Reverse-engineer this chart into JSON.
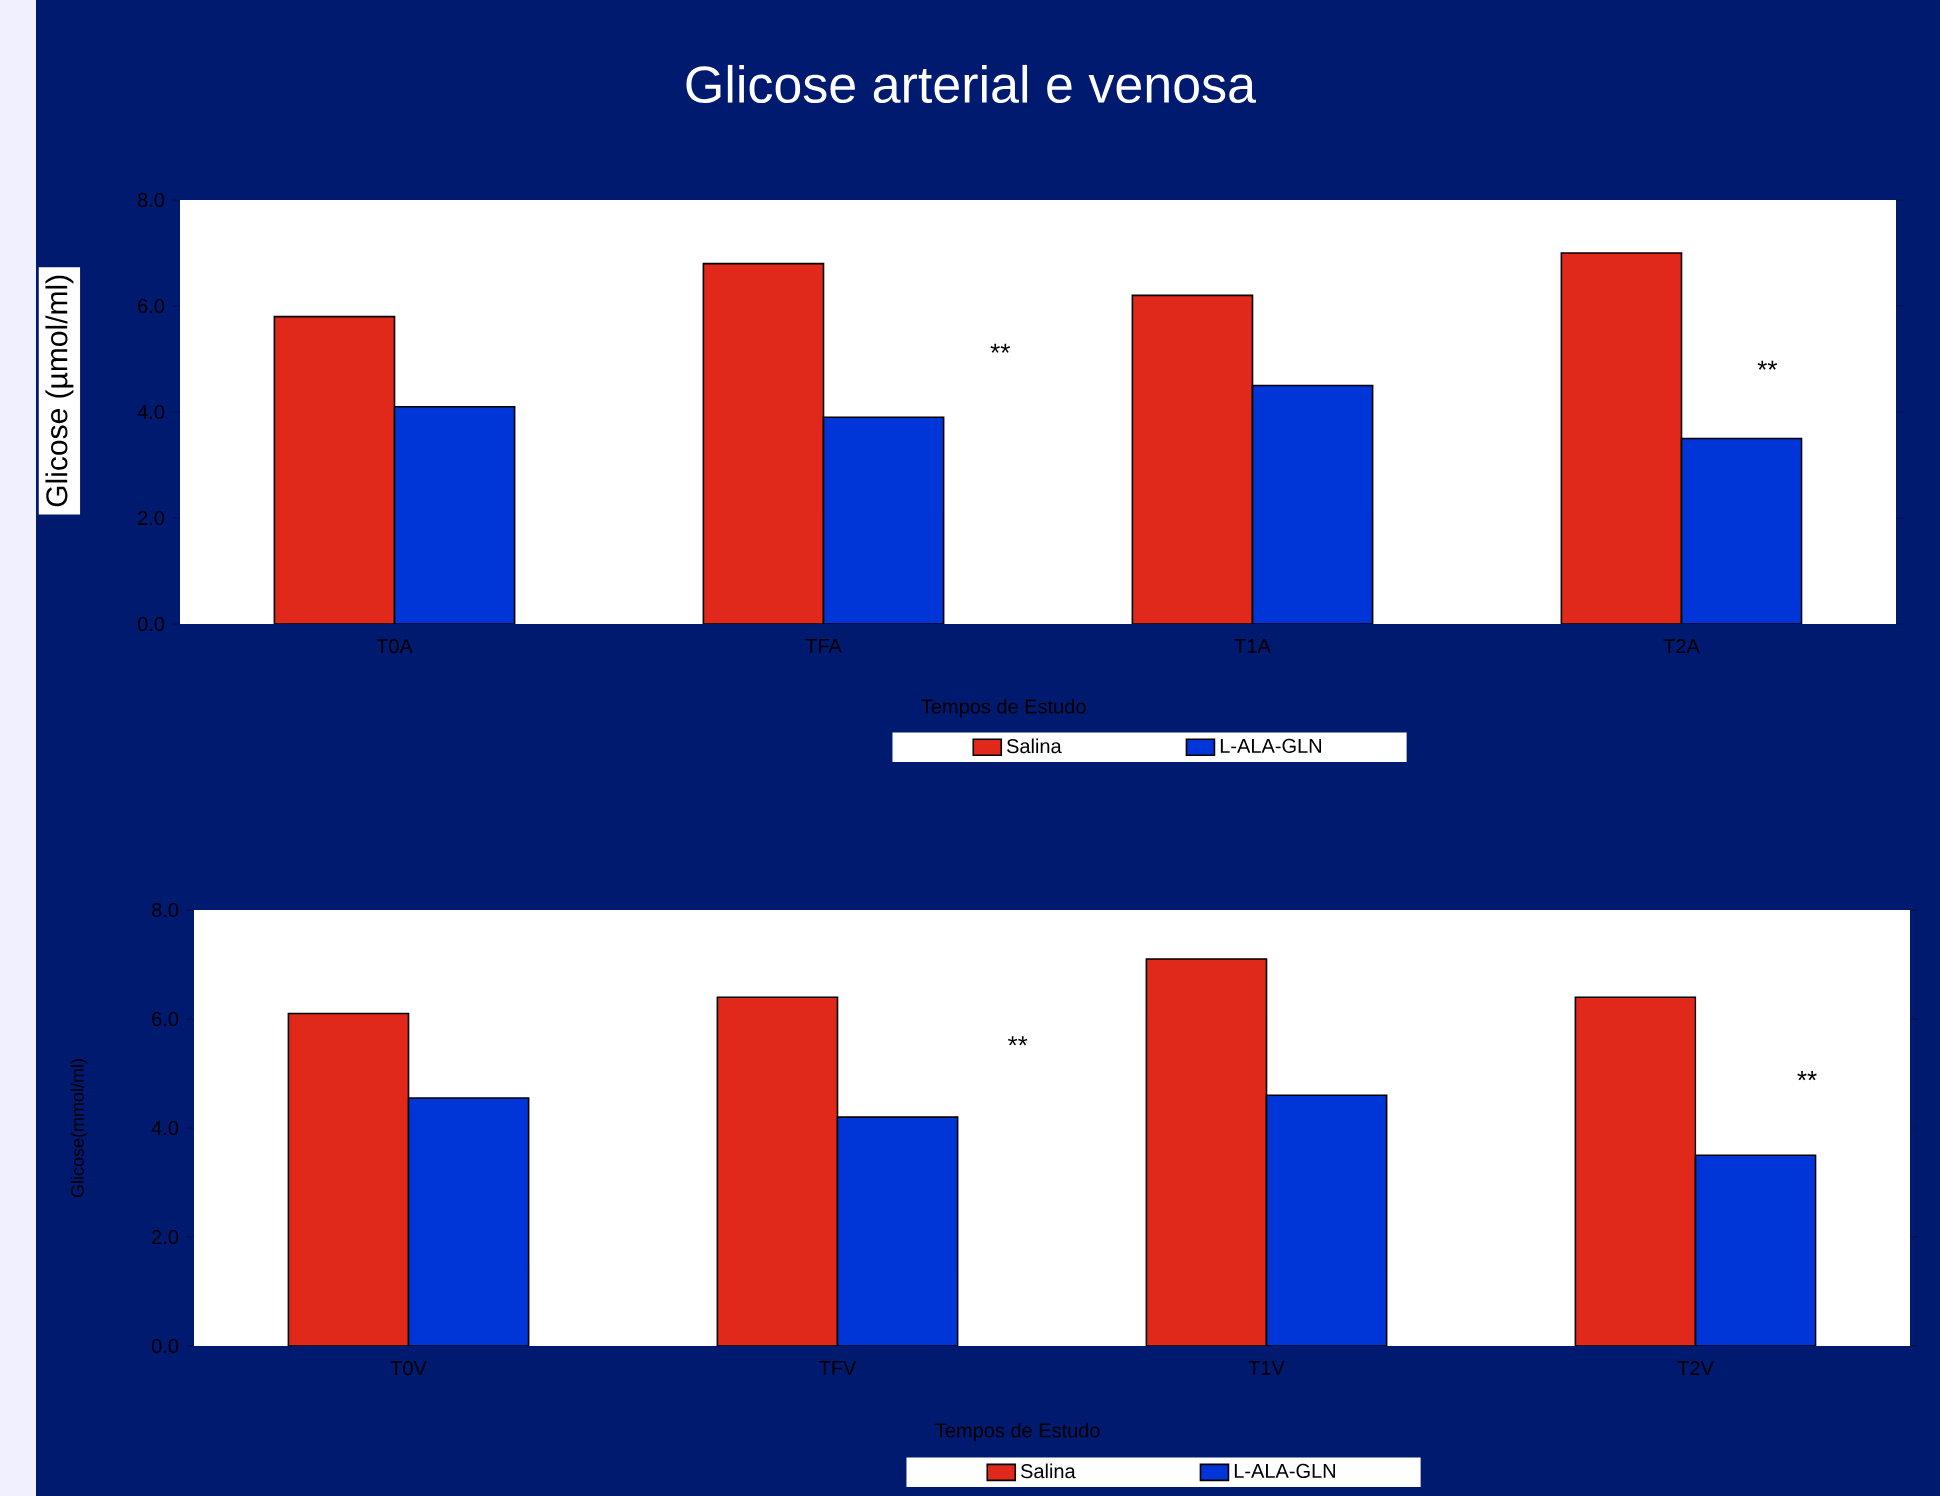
{
  "chart_data": [
    {
      "type": "bar",
      "title": "Glicose arterial e venosa",
      "xlabel": "Tempos de Estudo",
      "ylabel": "Glicose (µmol/ml)",
      "categories": [
        "T0A",
        "TFA",
        "T1A",
        "T2A"
      ],
      "series": [
        {
          "name": "Salina",
          "color": "#e0291a",
          "values": [
            5.8,
            6.8,
            6.2,
            7.0
          ]
        },
        {
          "name": "L-ALA-GLN",
          "color": "#0035d8",
          "values": [
            4.1,
            3.9,
            4.5,
            3.5
          ]
        }
      ],
      "ylim": [
        0,
        8
      ],
      "yticks": [
        {
          "value": 0,
          "label": "0.0"
        },
        {
          "value": 2,
          "label": "2.0"
        },
        {
          "value": 4,
          "label": "4.0"
        },
        {
          "value": 6,
          "label": "6.0"
        },
        {
          "value": 8,
          "label": "8.0"
        }
      ],
      "legend": "bottom",
      "annotations": [
        "**",
        "**"
      ]
    },
    {
      "type": "bar",
      "xlabel": "Tempos de Estudo",
      "ylabel": "Glicose(mmol/ml)",
      "categories": [
        "T0V",
        "TFV",
        "T1V",
        "T2V"
      ],
      "series": [
        {
          "name": "Salina",
          "color": "#e0291a",
          "values": [
            6.1,
            6.4,
            7.1,
            6.4
          ]
        },
        {
          "name": "L-ALA-GLN",
          "color": "#0035d8",
          "values": [
            4.55,
            4.2,
            4.6,
            3.5
          ]
        }
      ],
      "ylim": [
        0,
        8
      ],
      "yticks": [
        {
          "value": 0,
          "label": "0.0"
        },
        {
          "value": 2,
          "label": "2.0"
        },
        {
          "value": 4,
          "label": "4.0"
        },
        {
          "value": 6,
          "label": "6.0"
        },
        {
          "value": 8,
          "label": "8.0"
        }
      ],
      "legend": "bottom",
      "annotations": [
        "**",
        "**"
      ]
    }
  ]
}
